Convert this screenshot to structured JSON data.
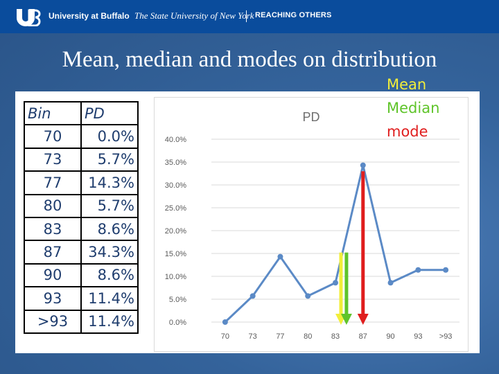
{
  "header": {
    "university": "University at Buffalo",
    "suny": "The State University of New York",
    "tagline": "REACHING OTHERS"
  },
  "slide": {
    "title": "Mean, median and modes on distribution"
  },
  "legend": [
    {
      "label": "Mean",
      "color": "#f2ee3a"
    },
    {
      "label": "Median",
      "color": "#5fc42a"
    },
    {
      "label": "mode",
      "color": "#e01e1e"
    }
  ],
  "table": {
    "headers": [
      "Bin",
      "PD"
    ],
    "rows": [
      {
        "bin": "70",
        "pd": "0.0%"
      },
      {
        "bin": "73",
        "pd": "5.7%"
      },
      {
        "bin": "77",
        "pd": "14.3%"
      },
      {
        "bin": "80",
        "pd": "5.7%"
      },
      {
        "bin": "83",
        "pd": "8.6%"
      },
      {
        "bin": "87",
        "pd": "34.3%"
      },
      {
        "bin": "90",
        "pd": "8.6%"
      },
      {
        "bin": "93",
        "pd": "11.4%"
      },
      {
        "bin": ">93",
        "pd": "11.4%"
      }
    ]
  },
  "chart_data": {
    "type": "line",
    "title": "PD",
    "categories": [
      "70",
      "73",
      "77",
      "80",
      "83",
      "87",
      "90",
      "93",
      ">93"
    ],
    "series": [
      {
        "name": "PD",
        "values": [
          0.0,
          5.7,
          14.3,
          5.7,
          8.6,
          34.3,
          8.6,
          11.4,
          11.4
        ],
        "color": "#5b8ac6"
      }
    ],
    "ylim": [
      0,
      40
    ],
    "yticks": [
      "0.0%",
      "5.0%",
      "10.0%",
      "15.0%",
      "20.0%",
      "25.0%",
      "30.0%",
      "35.0%",
      "40.0%"
    ],
    "grid": true,
    "markers": [
      {
        "name": "Mean",
        "x_position": 4.2,
        "color": "#f2ee3a"
      },
      {
        "name": "Median",
        "x_position": 4.4,
        "color": "#5fc42a"
      },
      {
        "name": "mode",
        "x_position": 5.0,
        "color": "#e01e1e"
      }
    ]
  }
}
